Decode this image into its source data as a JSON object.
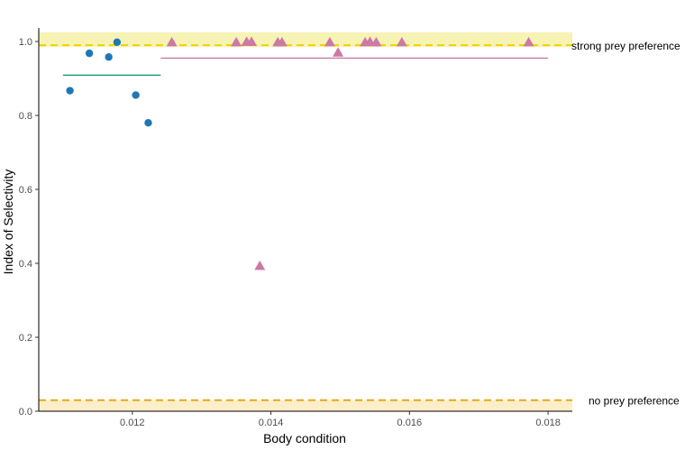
{
  "chart_data": {
    "type": "scatter",
    "title": "",
    "xlabel": "Body condition",
    "ylabel": "Index of Selectivity",
    "xlim": [
      0.01065,
      0.01835
    ],
    "ylim": [
      0,
      1.0
    ],
    "x_ticks": [
      0.012,
      0.014,
      0.016,
      0.018
    ],
    "x_tick_labels": [
      "0.012",
      "0.014",
      "0.016",
      "0.018"
    ],
    "y_ticks": [
      0.0,
      0.2,
      0.4,
      0.6,
      0.8,
      1.0
    ],
    "y_tick_labels": [
      "0.0",
      "0.2",
      "0.4",
      "0.6",
      "0.8",
      "1.0"
    ],
    "grid": false,
    "legend": "none",
    "series": [
      {
        "marker": "circle",
        "color": "#1f78b4",
        "x": [
          0.0111,
          0.01138,
          0.01166,
          0.01178,
          0.01205,
          0.01223
        ],
        "y": [
          0.867,
          0.968,
          0.958,
          0.998,
          0.855,
          0.78
        ],
        "mean_line": {
          "x_range": [
            0.011,
            0.01241
          ],
          "y": 0.909,
          "color": "#1b9e77"
        }
      },
      {
        "marker": "triangle",
        "color": "#cc79a7",
        "x": [
          0.01257,
          0.0135,
          0.01365,
          0.01372,
          0.0141,
          0.01416,
          0.01485,
          0.01497,
          0.01536,
          0.01543,
          0.01552,
          0.01589,
          0.01772,
          0.01384
        ],
        "y": [
          0.998,
          0.998,
          0.999,
          0.999,
          0.998,
          0.998,
          0.998,
          0.97,
          0.998,
          0.999,
          0.998,
          0.998,
          0.998,
          0.393
        ],
        "mean_line": {
          "x_range": [
            0.01241,
            0.018
          ],
          "y": 0.955,
          "color": "#cc79a7"
        }
      }
    ],
    "reference_bands": [
      {
        "label": "strong prey preference",
        "line_y": 0.99,
        "band_range": [
          0.985,
          1.025
        ],
        "band_color": "#f7f3b5",
        "line_color": "#f5d000"
      },
      {
        "label": "no prey preference",
        "line_y": 0.03,
        "band_range": [
          0.0,
          0.03
        ],
        "band_color": "#fbeec8",
        "line_color": "#e6a817"
      }
    ]
  }
}
